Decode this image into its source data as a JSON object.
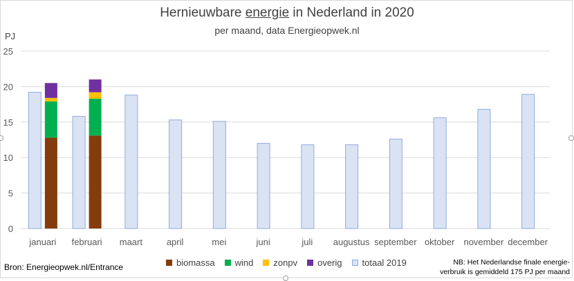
{
  "header": {
    "title_pre": "Hernieuwbare ",
    "title_underlined": "energie",
    "title_post": " in Nederland in 2020",
    "subtitle": "per maand, data Energieopwek.nl",
    "unit": "PJ"
  },
  "footer": {
    "source": "Bron: Energieopwek.nl/Entrance",
    "note_line1": "NB: Het Nederlandse finale energie-",
    "note_line2": "verbruik is gemiddeld 175 PJ per maand"
  },
  "colors": {
    "biomassa": "#843c0c",
    "wind": "#00b050",
    "zonpv": "#ffc000",
    "overig": "#7030a0",
    "totaal_fill": "#dae3f3",
    "totaal_stroke": "#8faadc",
    "grid": "#d9d9d9",
    "text": "#595959"
  },
  "chart_data": {
    "type": "bar",
    "categories": [
      "januari",
      "februari",
      "maart",
      "april",
      "mei",
      "juni",
      "juli",
      "augustus",
      "september",
      "oktober",
      "november",
      "december"
    ],
    "series": [
      {
        "name": "biomassa",
        "stacked": true,
        "values": [
          12.8,
          13.1,
          null,
          null,
          null,
          null,
          null,
          null,
          null,
          null,
          null,
          null
        ]
      },
      {
        "name": "wind",
        "stacked": true,
        "values": [
          5.1,
          5.2,
          null,
          null,
          null,
          null,
          null,
          null,
          null,
          null,
          null,
          null
        ]
      },
      {
        "name": "zonpv",
        "stacked": true,
        "values": [
          0.5,
          0.9,
          null,
          null,
          null,
          null,
          null,
          null,
          null,
          null,
          null,
          null
        ]
      },
      {
        "name": "overig",
        "stacked": true,
        "values": [
          2.1,
          1.8,
          null,
          null,
          null,
          null,
          null,
          null,
          null,
          null,
          null,
          null
        ]
      },
      {
        "name": "totaal 2019",
        "stacked": false,
        "values": [
          19.2,
          15.8,
          18.8,
          15.3,
          15.1,
          12.0,
          11.8,
          11.8,
          12.6,
          15.6,
          16.8,
          18.9
        ]
      }
    ],
    "ylim": [
      0,
      25
    ],
    "yticks": [
      0,
      5,
      10,
      15,
      20,
      25
    ],
    "grid": true,
    "legend_position": "bottom"
  }
}
